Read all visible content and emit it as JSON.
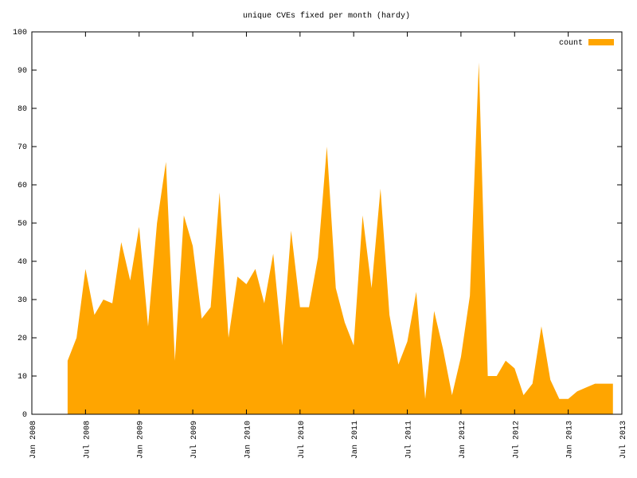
{
  "chart_data": {
    "type": "area",
    "title": "unique CVEs fixed per month (hardy)",
    "x": [
      "2008-05",
      "2008-06",
      "2008-07",
      "2008-08",
      "2008-09",
      "2008-10",
      "2008-11",
      "2008-12",
      "2009-01",
      "2009-02",
      "2009-03",
      "2009-04",
      "2009-05",
      "2009-06",
      "2009-07",
      "2009-08",
      "2009-09",
      "2009-10",
      "2009-11",
      "2009-12",
      "2010-01",
      "2010-02",
      "2010-03",
      "2010-04",
      "2010-05",
      "2010-06",
      "2010-07",
      "2010-08",
      "2010-09",
      "2010-10",
      "2010-11",
      "2010-12",
      "2011-01",
      "2011-02",
      "2011-03",
      "2011-04",
      "2011-05",
      "2011-06",
      "2011-07",
      "2011-08",
      "2011-09",
      "2011-10",
      "2011-11",
      "2011-12",
      "2012-01",
      "2012-02",
      "2012-03",
      "2012-04",
      "2012-05",
      "2012-06",
      "2012-07",
      "2012-08",
      "2012-09",
      "2012-10",
      "2012-11",
      "2012-12",
      "2013-01",
      "2013-02",
      "2013-03",
      "2013-04",
      "2013-05",
      "2013-06"
    ],
    "series": [
      {
        "name": "count",
        "color": "#ffa500",
        "values": [
          14,
          20,
          38,
          26,
          30,
          29,
          45,
          35,
          49,
          23,
          50,
          66,
          14,
          52,
          44,
          25,
          28,
          58,
          20,
          36,
          34,
          38,
          29,
          42,
          18,
          48,
          28,
          28,
          41,
          70,
          33,
          24,
          18,
          52,
          33,
          59,
          26,
          13,
          19,
          32,
          4,
          27,
          17,
          5,
          15,
          31,
          92,
          10,
          10,
          14,
          12,
          5,
          8,
          23,
          9,
          4,
          4,
          6,
          7,
          8,
          8,
          8
        ]
      }
    ],
    "xlim": [
      "2008-01",
      "2013-07"
    ],
    "xticks": [
      {
        "value": "2008-01",
        "label": "Jan 2008"
      },
      {
        "value": "2008-07",
        "label": "Jul 2008"
      },
      {
        "value": "2009-01",
        "label": "Jan 2009"
      },
      {
        "value": "2009-07",
        "label": "Jul 2009"
      },
      {
        "value": "2010-01",
        "label": "Jan 2010"
      },
      {
        "value": "2010-07",
        "label": "Jul 2010"
      },
      {
        "value": "2011-01",
        "label": "Jan 2011"
      },
      {
        "value": "2011-07",
        "label": "Jul 2011"
      },
      {
        "value": "2012-01",
        "label": "Jan 2012"
      },
      {
        "value": "2012-07",
        "label": "Jul 2012"
      },
      {
        "value": "2013-01",
        "label": "Jan 2013"
      },
      {
        "value": "2013-07",
        "label": "Jul 2013"
      }
    ],
    "ylim": [
      0,
      100
    ],
    "yticks": [
      0,
      10,
      20,
      30,
      40,
      50,
      60,
      70,
      80,
      90,
      100
    ],
    "legend": "top-right"
  }
}
